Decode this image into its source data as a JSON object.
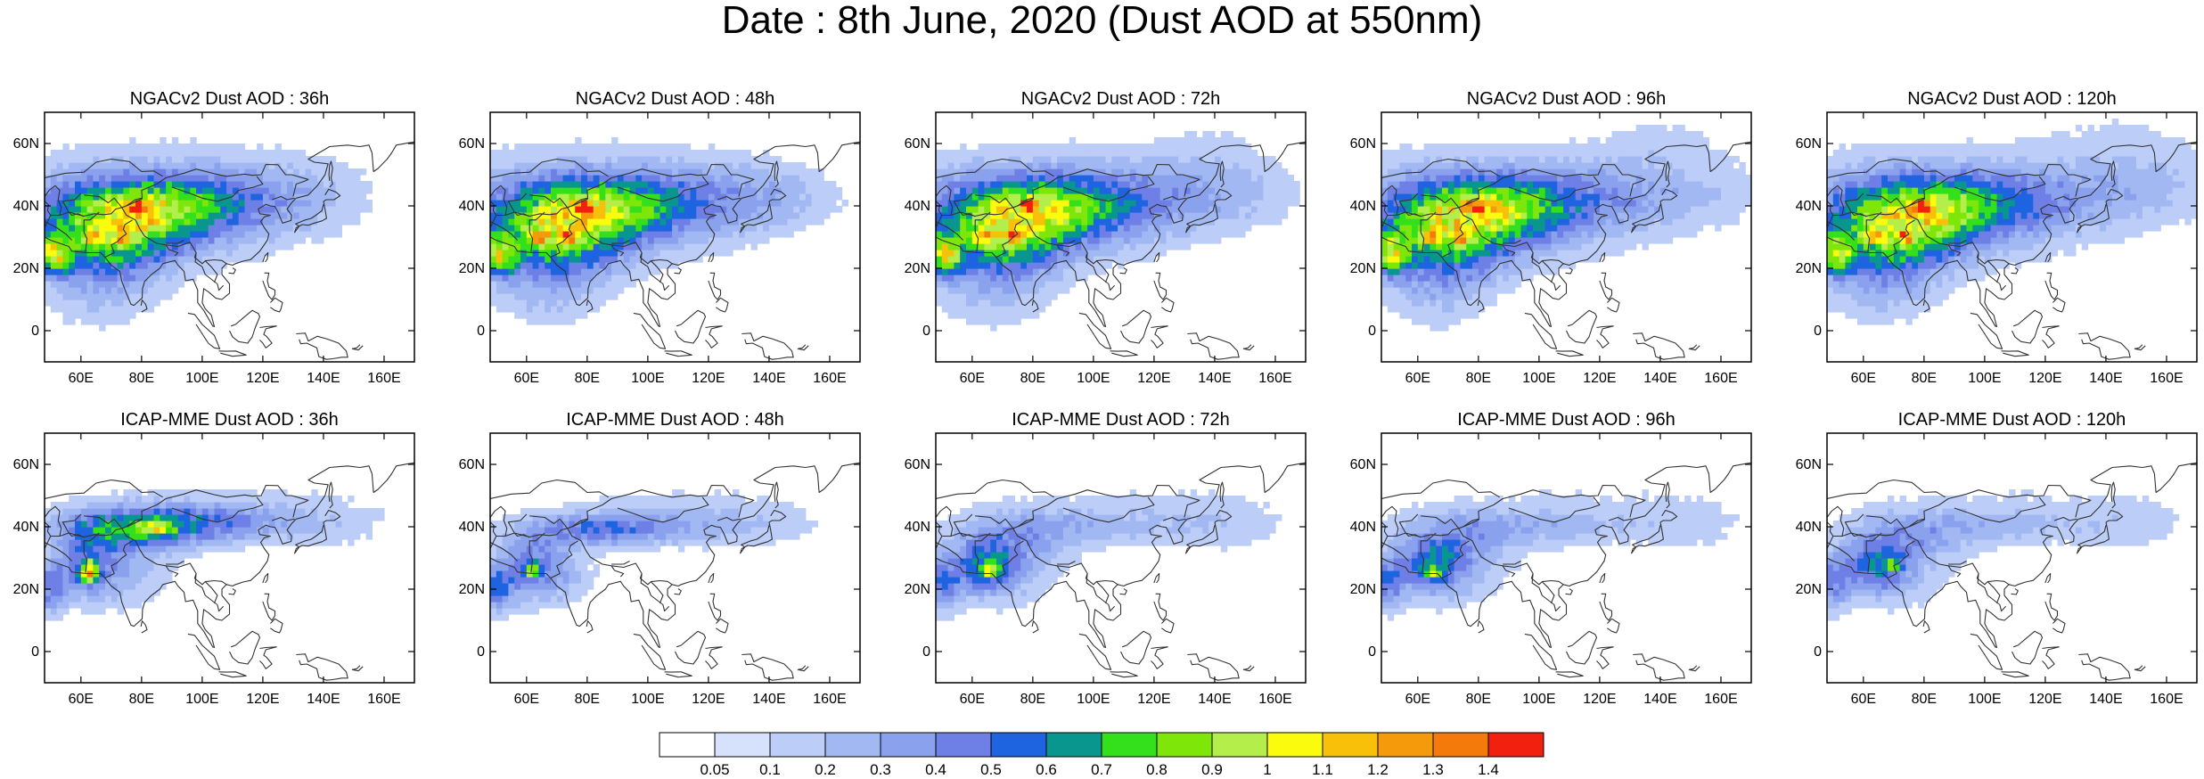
{
  "title": "Date : 8th June, 2020 (Dust AOD at 550nm)",
  "rows": [
    {
      "model": "NGACv2",
      "panels": [
        {
          "title": "NGACv2 Dust AOD : 36h"
        },
        {
          "title": "NGACv2 Dust AOD : 48h"
        },
        {
          "title": "NGACv2 Dust AOD : 72h"
        },
        {
          "title": "NGACv2 Dust AOD : 96h"
        },
        {
          "title": "NGACv2 Dust AOD : 120h"
        }
      ]
    },
    {
      "model": "ICAP-MME",
      "panels": [
        {
          "title": "ICAP-MME Dust AOD : 36h"
        },
        {
          "title": "ICAP-MME Dust AOD : 48h"
        },
        {
          "title": "ICAP-MME Dust AOD : 72h"
        },
        {
          "title": "ICAP-MME Dust AOD : 96h"
        },
        {
          "title": "ICAP-MME Dust AOD : 120h"
        }
      ]
    }
  ],
  "map": {
    "lon_range": [
      48,
      170
    ],
    "lat_range": [
      -10,
      70
    ],
    "lon_ticks": [
      60,
      80,
      100,
      120,
      140,
      160
    ],
    "lon_tick_labels": [
      "60E",
      "80E",
      "100E",
      "120E",
      "140E",
      "160E"
    ],
    "lat_ticks": [
      0,
      20,
      40,
      60
    ],
    "lat_tick_labels": [
      "0",
      "20N",
      "40N",
      "60N"
    ]
  },
  "colorbar": {
    "labels": [
      "0.05",
      "0.1",
      "0.2",
      "0.3",
      "0.4",
      "0.5",
      "0.6",
      "0.7",
      "0.8",
      "0.9",
      "1",
      "1.1",
      "1.2",
      "1.3",
      "1.4"
    ],
    "colors": [
      "#ffffff",
      "#d6e2fb",
      "#bccdf7",
      "#a2b8f3",
      "#8aa2ee",
      "#6e7fe6",
      "#1e64e0",
      "#08968f",
      "#34e01c",
      "#7fe60a",
      "#b4ee4a",
      "#fbfb0e",
      "#f8c009",
      "#f59b0b",
      "#f47a0c",
      "#f2200e"
    ]
  }
}
